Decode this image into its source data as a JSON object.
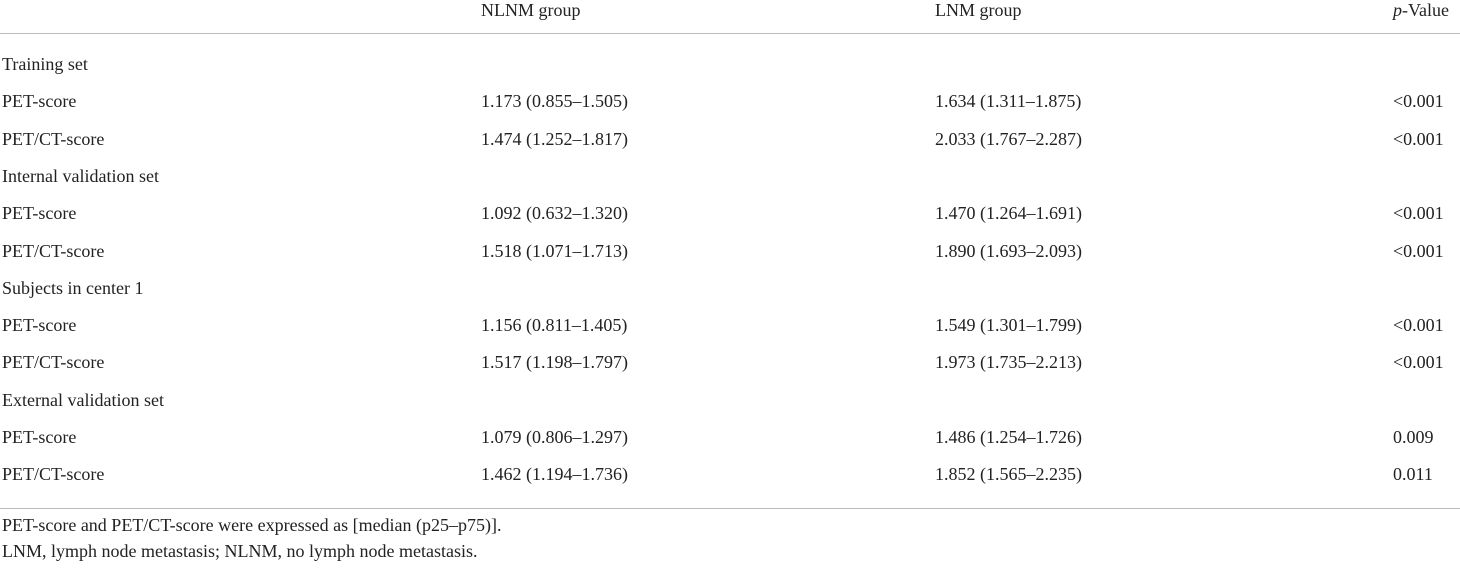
{
  "table": {
    "header": {
      "nlnm": "NLNM group",
      "lnm": "LNM group",
      "p_value": {
        "italic": "p",
        "rest": "-Value"
      }
    },
    "sections": [
      {
        "title": "Training set",
        "rows": [
          [
            "PET-score",
            "1.173 (0.855–1.505)",
            "1.634 (1.311–1.875)",
            "<0.001"
          ],
          [
            "PET/CT-score",
            "1.474 (1.252–1.817)",
            "2.033 (1.767–2.287)",
            "<0.001"
          ]
        ]
      },
      {
        "title": "Internal validation set",
        "rows": [
          [
            "PET-score",
            "1.092 (0.632–1.320)",
            "1.470 (1.264–1.691)",
            "<0.001"
          ],
          [
            "PET/CT-score",
            "1.518 (1.071–1.713)",
            "1.890 (1.693–2.093)",
            "<0.001"
          ]
        ]
      },
      {
        "title": "Subjects in center 1",
        "rows": [
          [
            "PET-score",
            "1.156 (0.811–1.405)",
            "1.549 (1.301–1.799)",
            "<0.001"
          ],
          [
            "PET/CT-score",
            "1.517 (1.198–1.797)",
            "1.973 (1.735–2.213)",
            "<0.001"
          ]
        ]
      },
      {
        "title": "External validation set",
        "rows": [
          [
            "PET-score",
            "1.079 (0.806–1.297)",
            "1.486 (1.254–1.726)",
            "0.009"
          ],
          [
            "PET/CT-score",
            "1.462 (1.194–1.736)",
            "1.852 (1.565–2.235)",
            "0.011"
          ]
        ]
      }
    ],
    "footnotes": [
      "PET-score and PET/CT-score were expressed as [median (p25–p75)].",
      "LNM, lymph node metastasis; NLNM, no lymph node metastasis."
    ]
  }
}
